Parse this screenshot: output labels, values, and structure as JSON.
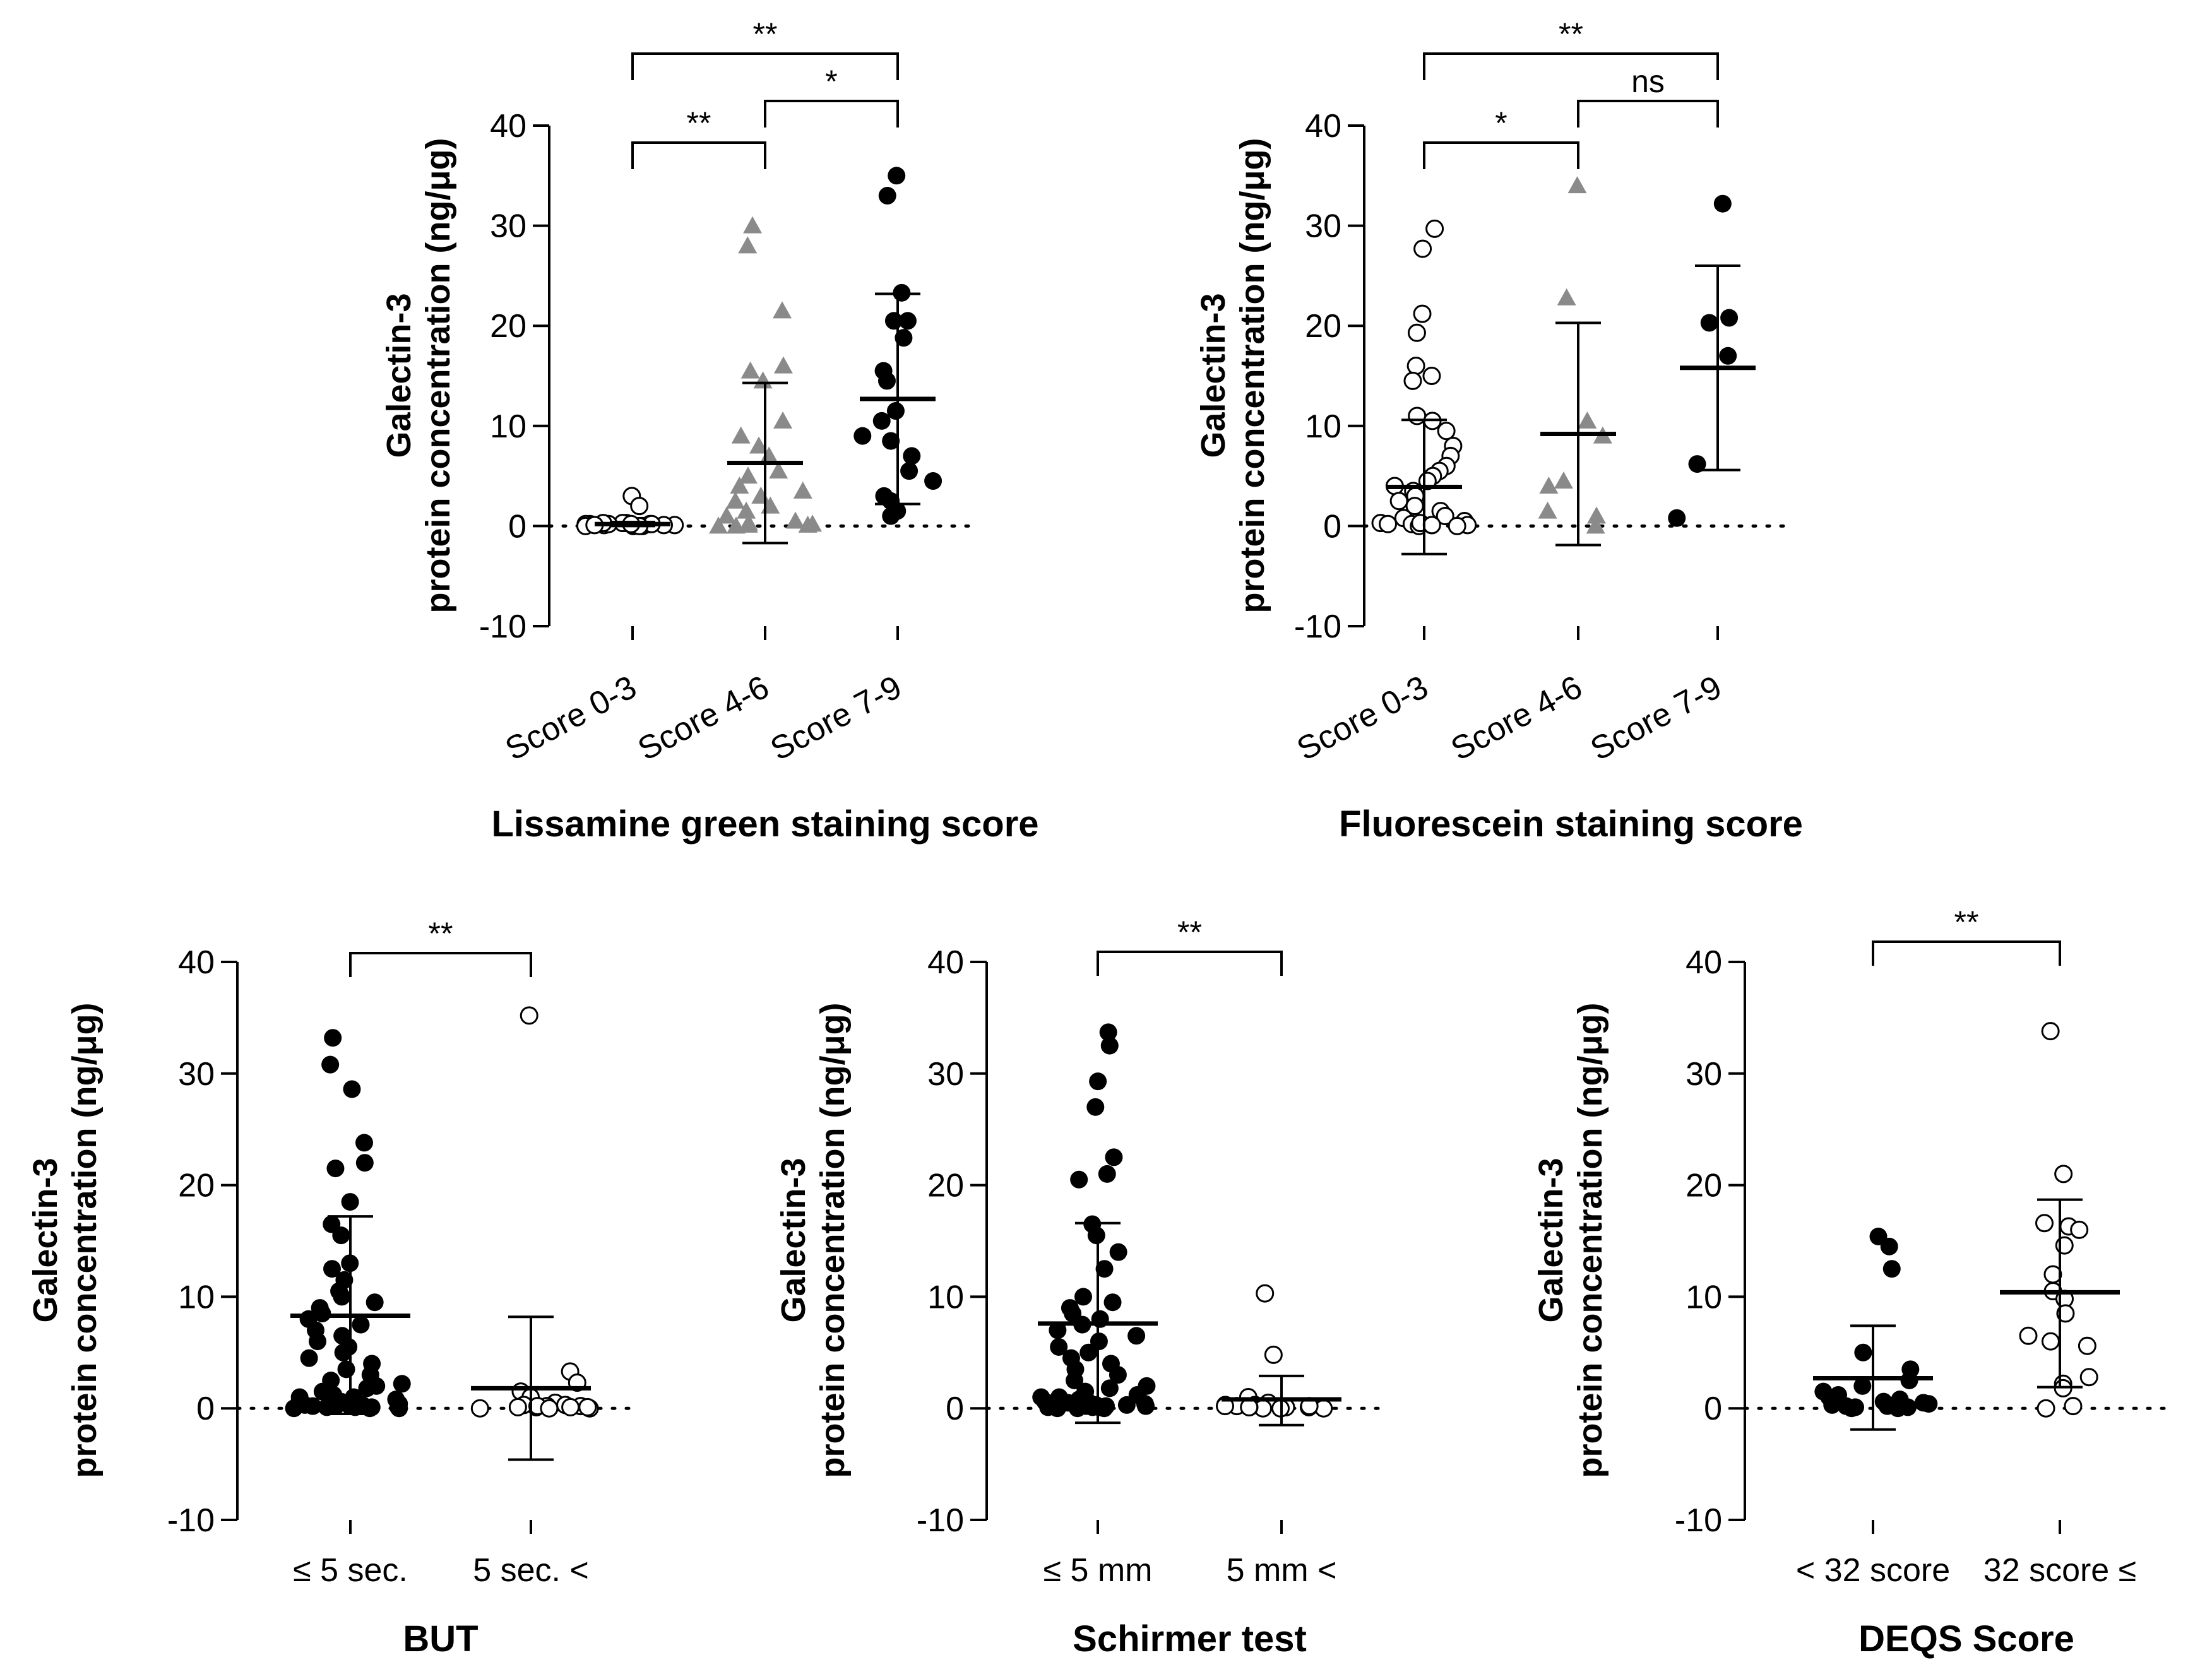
{
  "chart_data": [
    {
      "id": "lissamine",
      "type": "scatter",
      "xlabel": "Lissamine green staining score",
      "ylabel": [
        "Galectin-3",
        "protein concentration (ng/μg)"
      ],
      "ylim": [
        -10,
        40
      ],
      "yticks": [
        -10,
        0,
        10,
        20,
        30,
        40
      ],
      "reference_line": 0,
      "groups": [
        {
          "label": "Score 0-3",
          "marker": "open-circle",
          "mean": 0.2,
          "sd_low": 0.0,
          "sd_high": 0.4,
          "values": [
            3.0,
            2.0,
            0.2,
            0.1,
            0.3,
            0.0,
            0.2,
            0.1,
            0.0,
            0.3,
            0.2,
            0.1,
            0.2,
            0.0,
            0.1,
            0.3,
            0.2,
            0.1,
            0.0,
            0.2
          ]
        },
        {
          "label": "Score 4-6",
          "marker": "gray-triangle",
          "mean": 6.3,
          "sd_low": -1.7,
          "sd_high": 14.3,
          "values": [
            30.0,
            28.0,
            21.5,
            16.0,
            15.5,
            14.5,
            10.5,
            9.0,
            8.0,
            7.0,
            5.5,
            5.0,
            4.0,
            3.5,
            3.0,
            2.5,
            2.0,
            1.5,
            1.0,
            0.5,
            0.3,
            0.1,
            0.0,
            0.2,
            0.0,
            0.1
          ]
        },
        {
          "label": "Score 7-9",
          "marker": "black-circle",
          "mean": 12.7,
          "sd_low": 2.2,
          "sd_high": 23.2,
          "values": [
            35.0,
            33.0,
            23.3,
            20.5,
            20.5,
            18.8,
            15.5,
            14.5,
            11.5,
            10.5,
            9.0,
            8.5,
            7.0,
            5.5,
            4.5,
            3.0,
            2.5,
            1.5,
            1.0
          ]
        }
      ],
      "significance": [
        {
          "from": 0,
          "to": 2,
          "label": "**",
          "level": 2
        },
        {
          "from": 0,
          "to": 1,
          "label": "**",
          "level": 0
        },
        {
          "from": 1,
          "to": 2,
          "label": "*",
          "level": 1
        }
      ]
    },
    {
      "id": "fluorescein",
      "type": "scatter",
      "xlabel": "Fluorescein staining score",
      "ylabel": [
        "Galectin-3",
        "protein concentration (ng/μg)"
      ],
      "ylim": [
        -10,
        40
      ],
      "yticks": [
        -10,
        0,
        10,
        20,
        30,
        40
      ],
      "reference_line": 0,
      "groups": [
        {
          "label": "Score 0-3",
          "marker": "open-circle",
          "mean": 3.9,
          "sd_low": -2.8,
          "sd_high": 10.6,
          "values": [
            29.7,
            27.7,
            21.2,
            19.3,
            16.0,
            15.0,
            14.5,
            11.0,
            10.5,
            9.5,
            8.0,
            7.0,
            6.0,
            5.5,
            5.0,
            4.5,
            4.0,
            3.5,
            3.0,
            2.5,
            2.0,
            1.5,
            1.0,
            0.8,
            0.5,
            0.3,
            0.2,
            0.1,
            0.0,
            0.2,
            0.1,
            0.3,
            0.0,
            0.1
          ]
        },
        {
          "label": "Score 4-6",
          "marker": "gray-triangle",
          "mean": 9.2,
          "sd_low": -1.9,
          "sd_high": 20.3,
          "values": [
            34.0,
            22.8,
            10.5,
            9.0,
            4.5,
            4.0,
            1.5,
            1.0,
            0.0
          ]
        },
        {
          "label": "Score 7-9",
          "marker": "black-circle",
          "mean": 15.8,
          "sd_low": 5.6,
          "sd_high": 26.0,
          "values": [
            32.2,
            20.8,
            20.3,
            17.0,
            6.2,
            0.8
          ]
        }
      ],
      "significance": [
        {
          "from": 0,
          "to": 2,
          "label": "**",
          "level": 2
        },
        {
          "from": 0,
          "to": 1,
          "label": "*",
          "level": 0
        },
        {
          "from": 1,
          "to": 2,
          "label": "ns",
          "level": 1
        }
      ]
    },
    {
      "id": "but",
      "type": "scatter",
      "xlabel": "BUT",
      "ylabel": [
        "Galectin-3",
        "protein concentration (ng/μg)"
      ],
      "ylim": [
        -10,
        40
      ],
      "yticks": [
        -10,
        0,
        10,
        20,
        30,
        40
      ],
      "reference_line": 0,
      "groups": [
        {
          "label": "≤ 5 sec.",
          "marker": "black-circle",
          "mean": 8.3,
          "sd_low": -0.5,
          "sd_high": 17.2,
          "values": [
            33.2,
            30.8,
            28.6,
            23.8,
            22.0,
            21.5,
            18.5,
            16.5,
            15.5,
            13.0,
            12.5,
            11.5,
            10.5,
            10.0,
            9.5,
            9.0,
            8.5,
            8.0,
            7.5,
            7.0,
            6.5,
            6.0,
            5.5,
            5.0,
            4.5,
            4.0,
            3.5,
            3.0,
            2.5,
            2.2,
            2.0,
            1.8,
            1.5,
            1.2,
            1.0,
            0.8,
            0.6,
            0.4,
            0.2,
            0.1,
            0.0,
            0.3,
            0.5,
            0.2,
            0.1,
            0.0,
            1.0,
            0.6,
            0.3,
            0.1,
            0.0,
            0.2,
            0.4,
            0.1
          ]
        },
        {
          "label": "5 sec. <",
          "marker": "open-circle",
          "mean": 1.8,
          "sd_low": -4.6,
          "sd_high": 8.2,
          "values": [
            35.2,
            3.3,
            2.3,
            1.5,
            1.0,
            0.5,
            0.3,
            0.2,
            0.1,
            0.0,
            0.2,
            0.1,
            0.3,
            0.0,
            0.1,
            0.2,
            0.0,
            0.1
          ]
        }
      ],
      "significance": [
        {
          "from": 0,
          "to": 1,
          "label": "**",
          "level": 0
        }
      ]
    },
    {
      "id": "schirmer",
      "type": "scatter",
      "xlabel": "Schirmer test",
      "ylabel": [
        "Galectin-3",
        "protein concentration (ng/μg)"
      ],
      "ylim": [
        -10,
        40
      ],
      "yticks": [
        -10,
        0,
        10,
        20,
        30,
        40
      ],
      "reference_line": 0,
      "groups": [
        {
          "label": "≤ 5 mm",
          "marker": "black-circle",
          "mean": 7.6,
          "sd_low": -1.3,
          "sd_high": 16.6,
          "values": [
            33.7,
            32.5,
            29.3,
            27.0,
            22.5,
            21.0,
            20.5,
            16.5,
            15.5,
            14.0,
            12.5,
            10.0,
            9.5,
            9.0,
            8.5,
            8.0,
            7.5,
            7.0,
            6.5,
            6.0,
            5.5,
            5.0,
            4.5,
            4.0,
            3.5,
            3.0,
            2.5,
            2.0,
            1.8,
            1.5,
            1.2,
            1.0,
            0.8,
            0.6,
            0.4,
            0.2,
            0.1,
            0.0,
            0.3,
            0.5,
            0.2,
            0.1,
            0.0,
            1.0,
            0.6,
            0.3,
            0.1,
            0.0,
            0.2
          ]
        },
        {
          "label": "5 mm <",
          "marker": "open-circle",
          "mean": 0.8,
          "sd_low": -1.5,
          "sd_high": 2.9,
          "values": [
            10.3,
            4.8,
            1.0,
            0.5,
            0.3,
            0.2,
            0.1,
            0.0,
            0.2,
            0.1,
            0.3,
            0.0,
            0.1,
            0.2,
            0.0,
            0.1
          ]
        }
      ],
      "significance": [
        {
          "from": 0,
          "to": 1,
          "label": "**",
          "level": 0
        }
      ]
    },
    {
      "id": "deqs",
      "type": "scatter",
      "xlabel": "DEQS Score",
      "ylabel": [
        "Galectin-3",
        "protein concentration (ng/μg)"
      ],
      "ylim": [
        -10,
        40
      ],
      "yticks": [
        -10,
        0,
        10,
        20,
        30,
        40
      ],
      "reference_line": 0,
      "groups": [
        {
          "label": "< 32 score",
          "marker": "black-circle",
          "mean": 2.7,
          "sd_low": -1.9,
          "sd_high": 7.4,
          "values": [
            15.4,
            14.5,
            12.5,
            5.0,
            3.5,
            2.5,
            2.0,
            1.5,
            1.2,
            1.0,
            0.8,
            0.6,
            0.4,
            0.2,
            0.1,
            0.0,
            0.3,
            0.5,
            0.2,
            0.1,
            0.0
          ]
        },
        {
          "label": "32 score ≤",
          "marker": "open-circle",
          "mean": 10.4,
          "sd_low": 1.9,
          "sd_high": 18.7,
          "values": [
            33.8,
            21.0,
            16.6,
            16.3,
            16.0,
            14.6,
            12.0,
            10.5,
            9.8,
            8.5,
            6.5,
            6.0,
            5.6,
            2.8,
            2.2,
            1.8,
            0.2,
            0.0
          ]
        }
      ],
      "significance": [
        {
          "from": 0,
          "to": 1,
          "label": "**",
          "level": 0
        }
      ]
    }
  ]
}
